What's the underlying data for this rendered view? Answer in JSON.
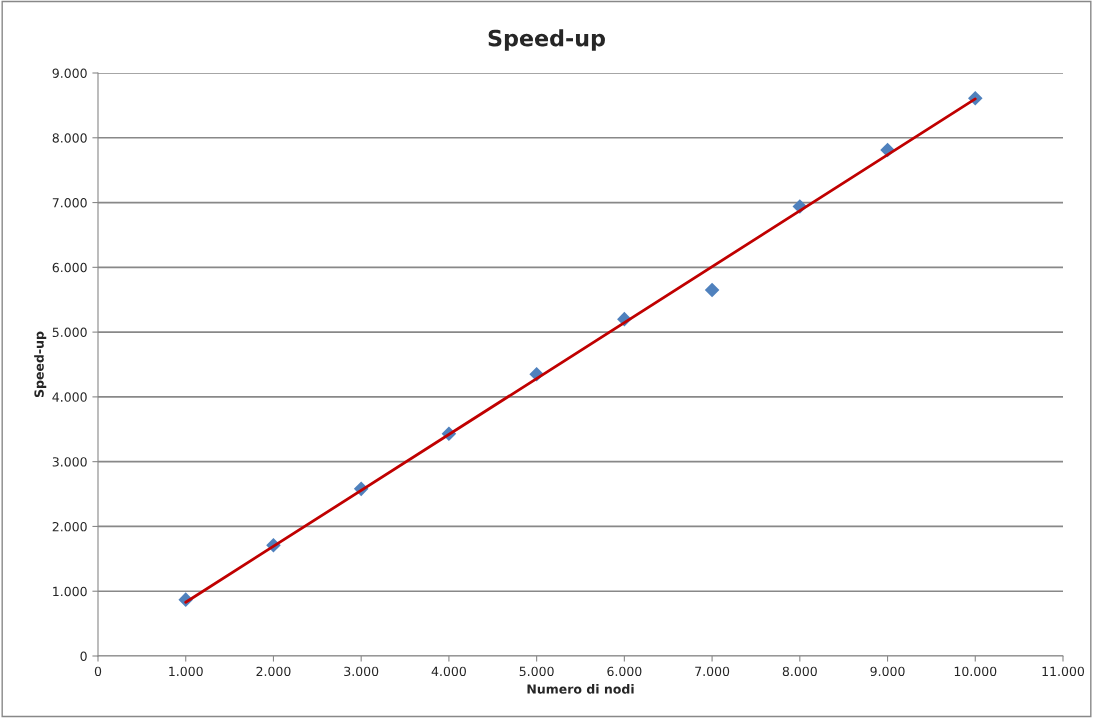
{
  "chart_data": {
    "type": "scatter",
    "title": "Speed-up",
    "xlabel": "Numero di nodi",
    "ylabel": "Speed-up",
    "series": [
      {
        "color": "#4f81bd",
        "marker": "diamond",
        "x": [
          1000,
          2000,
          3000,
          4000,
          5000,
          6000,
          7000,
          8000,
          9000,
          10000
        ],
        "values": [
          870,
          1710,
          2580,
          3430,
          4350,
          5200,
          5650,
          6940,
          7810,
          8610
        ]
      },
      {
        "type": "line",
        "color": "#c00000",
        "marker": "none",
        "line_style": "solid",
        "x": [
          1000,
          10000
        ],
        "values": [
          830,
          8600
        ]
      }
    ],
    "xlim": [
      0,
      11000
    ],
    "ylim": [
      0,
      9000
    ],
    "xticks": [
      0,
      {
        "value": 1000,
        "label": "1.000"
      },
      {
        "value": 2000,
        "label": "2.000"
      },
      {
        "value": 3000,
        "label": "3.000"
      },
      {
        "value": 4000,
        "label": "4.000"
      },
      {
        "value": 5000,
        "label": "5.000"
      },
      {
        "value": 6000,
        "label": "6.000"
      },
      {
        "value": 7000,
        "label": "7.000"
      },
      {
        "value": 8000,
        "label": "8.000"
      },
      {
        "value": 9000,
        "label": "9.000"
      },
      {
        "value": 10000,
        "label": "10.000"
      },
      {
        "value": 11000,
        "label": "11.000"
      }
    ],
    "yticks": [
      0,
      {
        "value": 1000,
        "label": "1.000"
      },
      {
        "value": 2000,
        "label": "2.000"
      },
      {
        "value": 3000,
        "label": "3.000"
      },
      {
        "value": 4000,
        "label": "4.000"
      },
      {
        "value": 5000,
        "label": "5.000"
      },
      {
        "value": 6000,
        "label": "6.000"
      },
      {
        "value": 7000,
        "label": "7.000"
      },
      {
        "value": 8000,
        "label": "8.000"
      },
      {
        "value": 9000,
        "label": "9.000"
      }
    ],
    "grid": "y"
  }
}
